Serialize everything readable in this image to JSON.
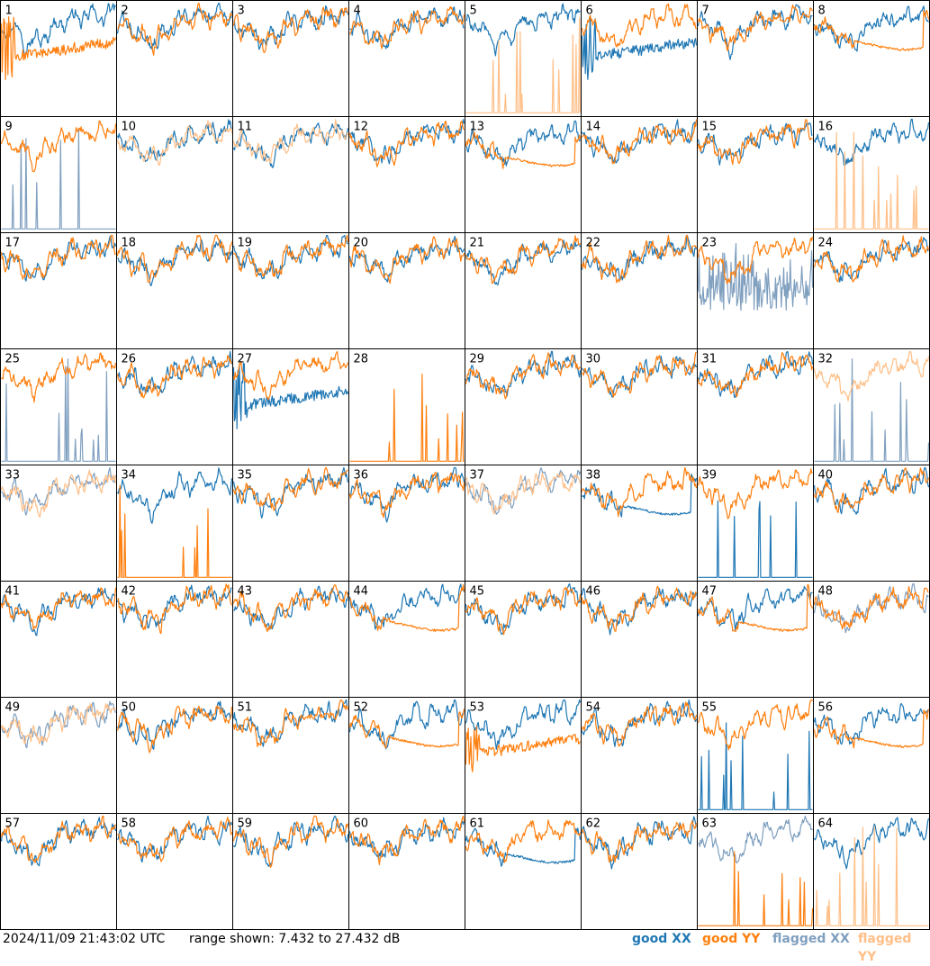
{
  "footer": {
    "timestamp": "2024/11/09 21:43:02 UTC",
    "range": "range shown: 7.432 to 27.432 dB"
  },
  "legend": [
    {
      "label": "good XX",
      "color": "#1f77b4"
    },
    {
      "label": "good YY",
      "color": "#ff7f0e"
    },
    {
      "label": "flagged XX",
      "color": "#7f9fbf"
    },
    {
      "label": "flagged YY",
      "color": "#ffbf87"
    }
  ],
  "chart_data": {
    "type": "line",
    "panel_labels": [
      "1",
      "2",
      "3",
      "4",
      "5",
      "6",
      "7",
      "8",
      "9",
      "10",
      "11",
      "12",
      "13",
      "14",
      "15",
      "16",
      "17",
      "18",
      "19",
      "20",
      "21",
      "22",
      "23",
      "24",
      "25",
      "26",
      "27",
      "28",
      "29",
      "30",
      "31",
      "32",
      "33",
      "34",
      "35",
      "36",
      "37",
      "38",
      "39",
      "40",
      "41",
      "42",
      "43",
      "44",
      "45",
      "46",
      "47",
      "48",
      "49",
      "50",
      "51",
      "52",
      "53",
      "54",
      "55",
      "56",
      "57",
      "58",
      "59",
      "60",
      "61",
      "62",
      "63",
      "64"
    ],
    "ylim": [
      7.432,
      27.432
    ],
    "unit": "dB",
    "panel_styles": {
      "1": {
        "x": "good",
        "y": "good",
        "yShape": "sag"
      },
      "2": {
        "x": "good",
        "y": "good"
      },
      "3": {
        "x": "good",
        "y": "good"
      },
      "4": {
        "x": "good",
        "y": "good"
      },
      "5": {
        "x": "good",
        "y": "flagged",
        "yShape": "spikes"
      },
      "6": {
        "x": "good",
        "y": "good",
        "xShape": "sag"
      },
      "7": {
        "x": "good",
        "y": "good"
      },
      "8": {
        "x": "good",
        "y": "good",
        "yShape": "flatmid"
      },
      "9": {
        "x": "flagged",
        "y": "good",
        "xShape": "spikes"
      },
      "10": {
        "x": "good",
        "y": "flagged"
      },
      "11": {
        "x": "good",
        "y": "flagged"
      },
      "12": {
        "x": "good",
        "y": "good"
      },
      "13": {
        "x": "good",
        "y": "good",
        "yShape": "flatmid"
      },
      "14": {
        "x": "good",
        "y": "good"
      },
      "15": {
        "x": "good",
        "y": "good"
      },
      "16": {
        "x": "good",
        "y": "flagged",
        "yShape": "spikes"
      },
      "17": {
        "x": "good",
        "y": "good"
      },
      "18": {
        "x": "good",
        "y": "good"
      },
      "19": {
        "x": "good",
        "y": "good"
      },
      "20": {
        "x": "good",
        "y": "good"
      },
      "21": {
        "x": "good",
        "y": "good"
      },
      "22": {
        "x": "good",
        "y": "good"
      },
      "23": {
        "x": "flagged",
        "y": "good",
        "xShape": "noisy"
      },
      "24": {
        "x": "good",
        "y": "good"
      },
      "25": {
        "x": "flagged",
        "y": "good",
        "xShape": "spikes"
      },
      "26": {
        "x": "good",
        "y": "good"
      },
      "27": {
        "x": "good",
        "y": "good",
        "xShape": "sag"
      },
      "28": {
        "x": "none",
        "y": "good",
        "yShape": "spikes"
      },
      "29": {
        "x": "good",
        "y": "good"
      },
      "30": {
        "x": "good",
        "y": "good"
      },
      "31": {
        "x": "good",
        "y": "good"
      },
      "32": {
        "x": "flagged",
        "y": "flagged",
        "xShape": "spikes"
      },
      "33": {
        "x": "flagged",
        "y": "flagged"
      },
      "34": {
        "x": "good",
        "y": "good",
        "yShape": "spikes"
      },
      "35": {
        "x": "good",
        "y": "good"
      },
      "36": {
        "x": "good",
        "y": "good"
      },
      "37": {
        "x": "flagged",
        "y": "flagged"
      },
      "38": {
        "x": "good",
        "y": "good",
        "xShape": "flatmid"
      },
      "39": {
        "x": "good",
        "y": "good",
        "xShape": "spikes"
      },
      "40": {
        "x": "good",
        "y": "good"
      },
      "41": {
        "x": "good",
        "y": "good"
      },
      "42": {
        "x": "good",
        "y": "good"
      },
      "43": {
        "x": "good",
        "y": "good"
      },
      "44": {
        "x": "good",
        "y": "good",
        "yShape": "flatmid"
      },
      "45": {
        "x": "good",
        "y": "good"
      },
      "46": {
        "x": "good",
        "y": "good"
      },
      "47": {
        "x": "good",
        "y": "good",
        "yShape": "flatmid"
      },
      "48": {
        "x": "flagged",
        "y": "good"
      },
      "49": {
        "x": "flagged",
        "y": "flagged"
      },
      "50": {
        "x": "good",
        "y": "good"
      },
      "51": {
        "x": "good",
        "y": "good"
      },
      "52": {
        "x": "good",
        "y": "good",
        "yShape": "flatmid"
      },
      "53": {
        "x": "good",
        "y": "good",
        "yShape": "sag"
      },
      "54": {
        "x": "good",
        "y": "good"
      },
      "55": {
        "x": "good",
        "y": "good",
        "xShape": "spikes"
      },
      "56": {
        "x": "good",
        "y": "good",
        "yShape": "flatmid"
      },
      "57": {
        "x": "good",
        "y": "good"
      },
      "58": {
        "x": "good",
        "y": "good"
      },
      "59": {
        "x": "good",
        "y": "good"
      },
      "60": {
        "x": "good",
        "y": "good"
      },
      "61": {
        "x": "good",
        "y": "good",
        "xShape": "flatmid"
      },
      "62": {
        "x": "good",
        "y": "good"
      },
      "63": {
        "x": "flagged",
        "y": "good",
        "yShape": "spikes"
      },
      "64": {
        "x": "good",
        "y": "flagged",
        "yShape": "spikes"
      }
    }
  }
}
